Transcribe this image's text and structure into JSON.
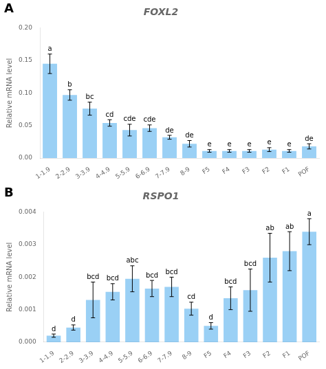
{
  "chart_data": [
    {
      "type": "bar",
      "title": "FOXL2",
      "panel_label": "A",
      "ylabel": "Relative mRNA level",
      "categories": [
        "1-1.9",
        "2-2.9",
        "3-3.9",
        "4-4.9",
        "5-5.9",
        "6-6.9",
        "7-7.9",
        "8-9",
        "F5",
        "F4",
        "F3",
        "F2",
        "F1",
        "POF"
      ],
      "values": [
        0.145,
        0.097,
        0.076,
        0.054,
        0.043,
        0.046,
        0.032,
        0.022,
        0.011,
        0.011,
        0.011,
        0.013,
        0.011,
        0.018
      ],
      "errors": [
        0.015,
        0.008,
        0.01,
        0.005,
        0.009,
        0.005,
        0.003,
        0.005,
        0.002,
        0.002,
        0.002,
        0.003,
        0.002,
        0.004
      ],
      "annotations": [
        "a",
        "b",
        "bc",
        "cd",
        "cde",
        "cde",
        "de",
        "de",
        "e",
        "e",
        "e",
        "e",
        "e",
        "de"
      ],
      "ylim": [
        0,
        0.2
      ],
      "yticks": [
        {
          "value": 0,
          "label": "0.00"
        },
        {
          "value": 0.05,
          "label": "0.05"
        },
        {
          "value": 0.1,
          "label": "0.10"
        },
        {
          "value": 0.15,
          "label": "0.15"
        },
        {
          "value": 0.2,
          "label": "0.20"
        }
      ],
      "grid": false
    },
    {
      "type": "bar",
      "title": "RSPO1",
      "panel_label": "B",
      "ylabel": "Relative mRNA level",
      "categories": [
        "1-1.9",
        "2-2.9",
        "3-3.9",
        "4-4.9",
        "5-5.9",
        "6-6.9",
        "7-7.9",
        "8-9",
        "F5",
        "F4",
        "F3",
        "F2",
        "F1",
        "POF"
      ],
      "values": [
        0.0002,
        0.00045,
        0.0013,
        0.00155,
        0.00195,
        0.00165,
        0.0017,
        0.00103,
        0.0005,
        0.00135,
        0.0016,
        0.0026,
        0.0028,
        0.0034
      ],
      "errors": [
        5e-05,
        8e-05,
        0.00055,
        0.00025,
        0.0004,
        0.00025,
        0.0003,
        0.0002,
        0.0001,
        0.00035,
        0.00065,
        0.00075,
        0.0006,
        0.0004
      ],
      "annotations": [
        "d",
        "d",
        "bcd",
        "bcd",
        "abc",
        "bcd",
        "bcd",
        "cd",
        "d",
        "bcd",
        "bcd",
        "ab",
        "ab",
        "a"
      ],
      "ylim": [
        0,
        0.004
      ],
      "yticks": [
        {
          "value": 0,
          "label": "0.000"
        },
        {
          "value": 0.001,
          "label": "0.001"
        },
        {
          "value": 0.002,
          "label": "0.002"
        },
        {
          "value": 0.003,
          "label": "0.003"
        },
        {
          "value": 0.004,
          "label": "0.004"
        }
      ],
      "grid": false
    }
  ]
}
